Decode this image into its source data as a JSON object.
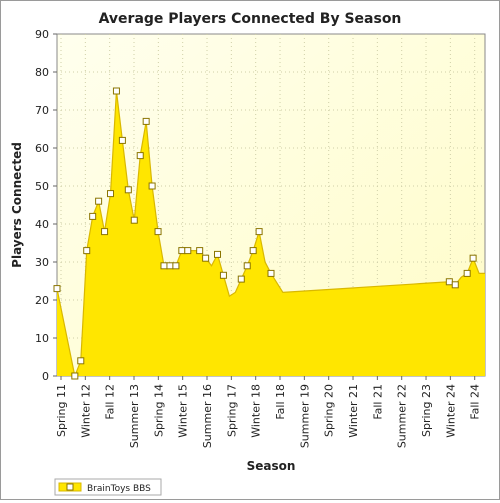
{
  "chart_data": {
    "type": "area",
    "title": "Average Players Connected By Season",
    "xlabel": "Season",
    "ylabel": "Players Connected",
    "ylim": [
      0,
      90
    ],
    "yticks": [
      0,
      10,
      20,
      30,
      40,
      50,
      60,
      70,
      80,
      90
    ],
    "grid": true,
    "legend_position": "bottom-left",
    "colors": {
      "fill": "#ffe600",
      "line": "#d9b800",
      "marker_fill": "#ffffff",
      "marker_stroke": "#8a7400",
      "plot_bg_light": "#ffffee",
      "plot_bg_dark": "#fffcc8"
    },
    "x_labels": [
      "Spring 11",
      "Winter 12",
      "Fall 12",
      "Summer 13",
      "Spring 14",
      "Winter 15",
      "Summer 16",
      "Spring 17",
      "Winter 18",
      "Fall 18",
      "Summer 19",
      "Spring 20",
      "Winter 21",
      "Fall 21",
      "Summer 22",
      "Spring 23",
      "Winter 24",
      "Fall 24"
    ],
    "series": [
      {
        "name": "BrainToys BBS",
        "x": [
          0,
          3,
          4,
          5,
          6,
          7,
          8,
          9,
          10,
          11,
          12,
          13,
          14,
          15,
          16,
          17,
          18,
          19,
          20,
          21,
          22,
          23,
          24,
          25,
          26,
          27,
          28,
          29,
          30,
          31,
          32,
          33,
          34,
          35,
          36,
          37,
          38,
          39,
          40,
          41,
          42,
          43,
          44,
          45,
          46,
          47,
          48,
          49,
          50,
          51,
          52,
          53,
          54,
          55,
          56,
          57,
          58,
          59,
          60,
          61,
          62,
          63,
          64,
          65,
          66,
          67,
          68,
          69,
          70,
          71,
          72
        ],
        "values": [
          23,
          0,
          4,
          33,
          42,
          46,
          38,
          48,
          75,
          62,
          49,
          41,
          58,
          67,
          50,
          38,
          29,
          29,
          29,
          33,
          33,
          33,
          33,
          31,
          29,
          32,
          26.5,
          21,
          22,
          25.5,
          29,
          33,
          38,
          30,
          27,
          24.5,
          22,
          22.1,
          22.2,
          22.3,
          22.4,
          22.5,
          22.6,
          22.7,
          22.8,
          22.9,
          23,
          23.1,
          23.2,
          23.3,
          23.4,
          23.5,
          23.6,
          23.7,
          23.8,
          23.9,
          24,
          24.1,
          24.2,
          24.3,
          24.4,
          24.5,
          24.6,
          24.7,
          24.8,
          24,
          26,
          27,
          31,
          27,
          27
        ],
        "marked": [
          0,
          3,
          4,
          5,
          6,
          7,
          8,
          9,
          10,
          11,
          12,
          13,
          14,
          15,
          16,
          17,
          18,
          19,
          20,
          21,
          22,
          24,
          25,
          27,
          28,
          31,
          32,
          33,
          34,
          36,
          66,
          67,
          69,
          70
        ]
      }
    ]
  }
}
